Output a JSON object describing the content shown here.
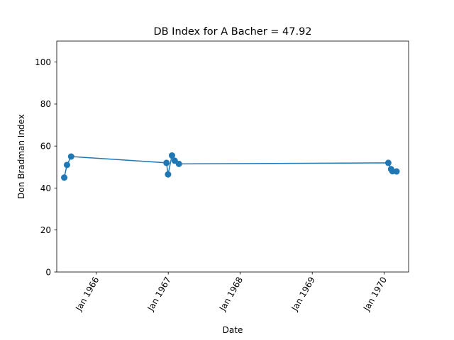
{
  "chart_data": {
    "type": "line",
    "title": "DB Index for A Bacher = 47.92",
    "xlabel": "Date",
    "ylabel": "Don Bradman Index",
    "ylim": [
      0,
      110
    ],
    "xlim": [
      "1965-06-14",
      "1970-05-05"
    ],
    "yticks": [
      0,
      20,
      40,
      60,
      80,
      100
    ],
    "xticks": [
      {
        "date": "1966-01-01",
        "label": "Jan 1966"
      },
      {
        "date": "1967-01-01",
        "label": "Jan 1967"
      },
      {
        "date": "1968-01-01",
        "label": "Jan 1968"
      },
      {
        "date": "1969-01-01",
        "label": "Jan 1969"
      },
      {
        "date": "1970-01-01",
        "label": "Jan 1970"
      }
    ],
    "grid": false,
    "color": "#1f77b4",
    "series": [
      {
        "points": [
          {
            "x": "1965-07-22",
            "y": 45.0
          },
          {
            "x": "1965-08-05",
            "y": 51.0
          },
          {
            "x": "1965-08-26",
            "y": 55.0
          },
          {
            "x": "1966-12-23",
            "y": 52.0
          },
          {
            "x": "1966-12-31",
            "y": 46.5
          },
          {
            "x": "1967-01-20",
            "y": 55.5
          },
          {
            "x": "1967-02-03",
            "y": 53.0
          },
          {
            "x": "1967-02-24",
            "y": 51.5
          },
          {
            "x": "1970-01-22",
            "y": 52.0
          },
          {
            "x": "1970-02-05",
            "y": 49.0
          },
          {
            "x": "1970-02-12",
            "y": 48.0
          },
          {
            "x": "1970-03-05",
            "y": 47.9
          }
        ]
      }
    ]
  }
}
